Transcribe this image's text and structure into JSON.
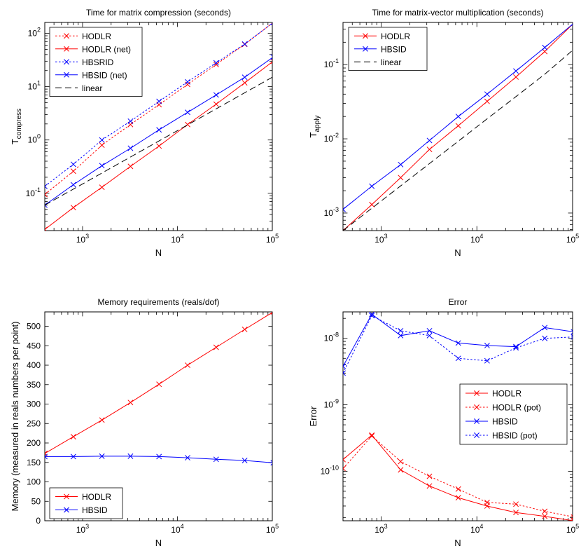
{
  "figure": {
    "background": "#ffffff"
  },
  "colors": {
    "red": "#ff0000",
    "blue": "#0000ff",
    "black": "#000000"
  },
  "chart_data": [
    {
      "id": "compress",
      "type": "line",
      "title": "Time for matrix compression (seconds)",
      "xlabel": "N",
      "ylabel": "T",
      "ylabel_sub": "compress",
      "xscale": "log",
      "yscale": "log",
      "xlim": [
        400,
        100000
      ],
      "ylim": [
        0.02,
        160
      ],
      "xticks": [
        {
          "v": 1000,
          "e": "3"
        },
        {
          "v": 10000,
          "e": "4"
        },
        {
          "v": 100000,
          "e": "5"
        }
      ],
      "yticks": [
        {
          "v": 0.1,
          "e": "-1"
        },
        {
          "v": 1,
          "e": "0"
        },
        {
          "v": 10,
          "e": "1"
        },
        {
          "v": 100,
          "e": "2"
        }
      ],
      "grid": false,
      "legend": {
        "position": "top-left"
      },
      "x": [
        400,
        800,
        1600,
        3200,
        6400,
        12800,
        25600,
        51200,
        102400
      ],
      "series": [
        {
          "name": "HODLR",
          "color": "#ff0000",
          "dash": "dotted",
          "marker": "x",
          "values": [
            0.095,
            0.26,
            0.8,
            1.95,
            4.6,
            11,
            26,
            62,
            160
          ]
        },
        {
          "name": "HODLR (net)",
          "color": "#ff0000",
          "dash": "solid",
          "marker": "x",
          "values": [
            0.021,
            0.054,
            0.13,
            0.32,
            0.77,
            1.95,
            4.7,
            11.8,
            30
          ]
        },
        {
          "name": "HBSRID",
          "color": "#0000ff",
          "dash": "dotted",
          "marker": "x",
          "values": [
            0.135,
            0.35,
            1.0,
            2.25,
            5.3,
            12.3,
            28,
            63,
            160
          ]
        },
        {
          "name": "HBSID (net)",
          "color": "#0000ff",
          "dash": "solid",
          "marker": "x",
          "values": [
            0.06,
            0.145,
            0.33,
            0.7,
            1.55,
            3.3,
            7,
            15,
            36
          ]
        },
        {
          "name": "linear",
          "color": "#000000",
          "dash": "dashed",
          "marker": "none",
          "values": [
            0.06,
            0.12,
            0.24,
            0.48,
            0.96,
            1.92,
            3.84,
            7.68,
            15.4
          ]
        }
      ]
    },
    {
      "id": "apply",
      "type": "line",
      "title": "Time for matrix-vector multiplication (seconds)",
      "xlabel": "N",
      "ylabel": "T",
      "ylabel_sub": "apply",
      "xscale": "log",
      "yscale": "log",
      "xlim": [
        400,
        100000
      ],
      "ylim": [
        0.00058,
        0.37
      ],
      "xticks": [
        {
          "v": 1000,
          "e": "3"
        },
        {
          "v": 10000,
          "e": "4"
        },
        {
          "v": 100000,
          "e": "5"
        }
      ],
      "yticks": [
        {
          "v": 0.001,
          "e": "-3"
        },
        {
          "v": 0.01,
          "e": "-2"
        },
        {
          "v": 0.1,
          "e": "-1"
        }
      ],
      "grid": false,
      "legend": {
        "position": "top-left"
      },
      "x": [
        400,
        800,
        1600,
        3200,
        6400,
        12800,
        25600,
        51200,
        102400
      ],
      "series": [
        {
          "name": "HODLR",
          "color": "#ff0000",
          "dash": "solid",
          "marker": "x",
          "values": [
            0.00058,
            0.0013,
            0.003,
            0.0072,
            0.015,
            0.032,
            0.068,
            0.15,
            0.36
          ]
        },
        {
          "name": "HBSID",
          "color": "#0000ff",
          "dash": "solid",
          "marker": "x",
          "values": [
            0.00112,
            0.0023,
            0.0045,
            0.0095,
            0.02,
            0.04,
            0.082,
            0.17,
            0.36
          ]
        },
        {
          "name": "linear",
          "color": "#000000",
          "dash": "dashed",
          "marker": "none",
          "values": [
            0.00058,
            0.00116,
            0.00232,
            0.00464,
            0.00928,
            0.0186,
            0.0371,
            0.0742,
            0.16
          ]
        }
      ]
    },
    {
      "id": "memory",
      "type": "line",
      "title": "Memory requirements (reals/dof)",
      "xlabel": "N",
      "ylabel": "Memory (measured in reals numbers per point)",
      "xscale": "log",
      "yscale": "linear",
      "xlim": [
        400,
        100000
      ],
      "ylim": [
        0,
        537
      ],
      "xticks": [
        {
          "v": 1000,
          "e": "3"
        },
        {
          "v": 10000,
          "e": "4"
        },
        {
          "v": 100000,
          "e": "5"
        }
      ],
      "yticks_linear": [
        0,
        50,
        100,
        150,
        200,
        250,
        300,
        350,
        400,
        450,
        500
      ],
      "grid": false,
      "legend": {
        "position": "bottom-left"
      },
      "x": [
        400,
        800,
        1600,
        3200,
        6400,
        12800,
        25600,
        51200,
        102400
      ],
      "series": [
        {
          "name": "HODLR",
          "color": "#ff0000",
          "dash": "solid",
          "marker": "x",
          "values": [
            173,
            216,
            259,
            304,
            351,
            400,
            446,
            492,
            537
          ]
        },
        {
          "name": "HBSID",
          "color": "#0000ff",
          "dash": "solid",
          "marker": "x",
          "values": [
            165,
            165,
            166,
            166,
            165,
            162,
            158,
            155,
            149
          ]
        }
      ]
    },
    {
      "id": "error",
      "type": "line",
      "title": "Error",
      "xlabel": "N",
      "ylabel": "Error",
      "xscale": "log",
      "yscale": "log",
      "xlim": [
        400,
        100000
      ],
      "ylim": [
        1.8e-11,
        2.5e-08
      ],
      "xticks": [
        {
          "v": 1000,
          "e": "3"
        },
        {
          "v": 10000,
          "e": "4"
        },
        {
          "v": 100000,
          "e": "5"
        }
      ],
      "yticks": [
        {
          "v": 1e-10,
          "e": "-10"
        },
        {
          "v": 1e-09,
          "e": "-9"
        },
        {
          "v": 1e-08,
          "e": "-8"
        }
      ],
      "grid": false,
      "legend": {
        "position": "right"
      },
      "x": [
        400,
        800,
        1600,
        3200,
        6400,
        12800,
        25600,
        51200,
        102400
      ],
      "series": [
        {
          "name": "HODLR",
          "color": "#ff0000",
          "dash": "solid",
          "marker": "x",
          "values": [
            1.5e-10,
            3.5e-10,
            1.05e-10,
            6e-11,
            4e-11,
            3e-11,
            2.4e-11,
            2.1e-11,
            1.8e-11
          ]
        },
        {
          "name": "HODLR (pot)",
          "color": "#ff0000",
          "dash": "dotted",
          "marker": "x",
          "values": [
            1.1e-10,
            3.4e-10,
            1.4e-10,
            8.4e-11,
            5.4e-11,
            3.4e-11,
            3.2e-11,
            2.5e-11,
            2.05e-11
          ]
        },
        {
          "name": "HBSID",
          "color": "#0000ff",
          "dash": "solid",
          "marker": "x",
          "values": [
            3.8e-09,
            2.3e-08,
            1.1e-08,
            1.3e-08,
            8.5e-09,
            7.8e-09,
            7.5e-09,
            1.45e-08,
            1.25e-08
          ]
        },
        {
          "name": "HBSID (pot)",
          "color": "#0000ff",
          "dash": "dotted",
          "marker": "x",
          "values": [
            3e-09,
            2.2e-08,
            1.3e-08,
            1.1e-08,
            5e-09,
            4.6e-09,
            7.2e-09,
            1e-08,
            1.05e-08
          ]
        }
      ]
    }
  ]
}
